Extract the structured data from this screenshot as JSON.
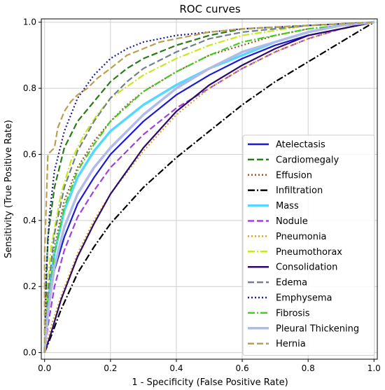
{
  "chart_data": {
    "type": "line",
    "title": "ROC curves",
    "xlabel": "1 - Specificity (False Positive Rate)",
    "ylabel": "Sensitivity (True Positive Rate)",
    "xlim": [
      -0.01,
      1.01
    ],
    "ylim": [
      -0.02,
      1.01
    ],
    "xticks": [
      "0.0",
      "0.2",
      "0.4",
      "0.6",
      "0.8",
      "1.0"
    ],
    "yticks": [
      "0.0",
      "0.2",
      "0.4",
      "0.6",
      "0.8",
      "1.0"
    ],
    "grid": true,
    "legend_position": "lower-right",
    "series": [
      {
        "name": "Atelectasis",
        "color": "#1a1ad6",
        "dash": "solid",
        "points": [
          [
            0,
            0
          ],
          [
            0.01,
            0.12
          ],
          [
            0.03,
            0.25
          ],
          [
            0.06,
            0.35
          ],
          [
            0.1,
            0.45
          ],
          [
            0.15,
            0.53
          ],
          [
            0.2,
            0.6
          ],
          [
            0.3,
            0.7
          ],
          [
            0.4,
            0.78
          ],
          [
            0.5,
            0.84
          ],
          [
            0.6,
            0.89
          ],
          [
            0.7,
            0.93
          ],
          [
            0.8,
            0.96
          ],
          [
            0.9,
            0.98
          ],
          [
            1,
            1
          ]
        ]
      },
      {
        "name": "Cardiomegaly",
        "color": "#2a7a1a",
        "dash": "dashed",
        "points": [
          [
            0,
            0
          ],
          [
            0.005,
            0.2
          ],
          [
            0.01,
            0.35
          ],
          [
            0.03,
            0.5
          ],
          [
            0.06,
            0.62
          ],
          [
            0.1,
            0.7
          ],
          [
            0.15,
            0.76
          ],
          [
            0.2,
            0.82
          ],
          [
            0.25,
            0.86
          ],
          [
            0.3,
            0.89
          ],
          [
            0.4,
            0.93
          ],
          [
            0.5,
            0.96
          ],
          [
            0.6,
            0.98
          ],
          [
            0.8,
            0.99
          ],
          [
            1,
            1
          ]
        ]
      },
      {
        "name": "Effusion",
        "color": "#a0522d",
        "dash": "dotted",
        "points": [
          [
            0,
            0
          ],
          [
            0.01,
            0.15
          ],
          [
            0.03,
            0.32
          ],
          [
            0.06,
            0.46
          ],
          [
            0.1,
            0.56
          ],
          [
            0.15,
            0.64
          ],
          [
            0.2,
            0.7
          ],
          [
            0.25,
            0.75
          ],
          [
            0.3,
            0.79
          ],
          [
            0.4,
            0.85
          ],
          [
            0.5,
            0.9
          ],
          [
            0.6,
            0.93
          ],
          [
            0.7,
            0.96
          ],
          [
            0.8,
            0.98
          ],
          [
            1,
            1
          ]
        ]
      },
      {
        "name": "Infiltration",
        "color": "#000000",
        "dash": "dashdot",
        "points": [
          [
            0,
            0
          ],
          [
            0.02,
            0.05
          ],
          [
            0.05,
            0.13
          ],
          [
            0.1,
            0.24
          ],
          [
            0.15,
            0.32
          ],
          [
            0.2,
            0.39
          ],
          [
            0.3,
            0.5
          ],
          [
            0.4,
            0.59
          ],
          [
            0.5,
            0.67
          ],
          [
            0.6,
            0.75
          ],
          [
            0.7,
            0.82
          ],
          [
            0.8,
            0.88
          ],
          [
            0.9,
            0.94
          ],
          [
            1,
            1
          ]
        ]
      },
      {
        "name": "Mass",
        "color": "#55d8ff",
        "dash": "solid-thick",
        "points": [
          [
            0,
            0
          ],
          [
            0.01,
            0.15
          ],
          [
            0.03,
            0.3
          ],
          [
            0.06,
            0.43
          ],
          [
            0.1,
            0.53
          ],
          [
            0.15,
            0.61
          ],
          [
            0.2,
            0.67
          ],
          [
            0.3,
            0.75
          ],
          [
            0.4,
            0.81
          ],
          [
            0.5,
            0.86
          ],
          [
            0.6,
            0.9
          ],
          [
            0.7,
            0.94
          ],
          [
            0.8,
            0.97
          ],
          [
            0.9,
            0.99
          ],
          [
            1,
            1
          ]
        ]
      },
      {
        "name": "Nodule",
        "color": "#a040e0",
        "dash": "dashed",
        "points": [
          [
            0,
            0
          ],
          [
            0.01,
            0.08
          ],
          [
            0.03,
            0.2
          ],
          [
            0.06,
            0.31
          ],
          [
            0.1,
            0.41
          ],
          [
            0.15,
            0.49
          ],
          [
            0.2,
            0.56
          ],
          [
            0.3,
            0.66
          ],
          [
            0.4,
            0.74
          ],
          [
            0.5,
            0.8
          ],
          [
            0.6,
            0.86
          ],
          [
            0.7,
            0.91
          ],
          [
            0.8,
            0.95
          ],
          [
            0.9,
            0.98
          ],
          [
            1,
            1
          ]
        ]
      },
      {
        "name": "Pneumonia",
        "color": "#e0a020",
        "dash": "dotted",
        "points": [
          [
            0,
            0
          ],
          [
            0.02,
            0.08
          ],
          [
            0.05,
            0.17
          ],
          [
            0.1,
            0.3
          ],
          [
            0.15,
            0.4
          ],
          [
            0.2,
            0.48
          ],
          [
            0.3,
            0.61
          ],
          [
            0.4,
            0.72
          ],
          [
            0.5,
            0.8
          ],
          [
            0.6,
            0.86
          ],
          [
            0.7,
            0.91
          ],
          [
            0.8,
            0.95
          ],
          [
            0.9,
            0.98
          ],
          [
            1,
            1
          ]
        ]
      },
      {
        "name": "Pneumothorax",
        "color": "#c8e81a",
        "dash": "dashdot",
        "points": [
          [
            0,
            0
          ],
          [
            0.005,
            0.15
          ],
          [
            0.02,
            0.32
          ],
          [
            0.05,
            0.48
          ],
          [
            0.08,
            0.58
          ],
          [
            0.12,
            0.66
          ],
          [
            0.16,
            0.72
          ],
          [
            0.2,
            0.77
          ],
          [
            0.3,
            0.84
          ],
          [
            0.4,
            0.89
          ],
          [
            0.5,
            0.93
          ],
          [
            0.6,
            0.96
          ],
          [
            0.8,
            0.99
          ],
          [
            1,
            1
          ]
        ]
      },
      {
        "name": "Consolidation",
        "color": "#2a0a6a",
        "dash": "solid",
        "points": [
          [
            0,
            0
          ],
          [
            0.02,
            0.06
          ],
          [
            0.05,
            0.16
          ],
          [
            0.1,
            0.29
          ],
          [
            0.15,
            0.39
          ],
          [
            0.2,
            0.48
          ],
          [
            0.3,
            0.62
          ],
          [
            0.4,
            0.73
          ],
          [
            0.5,
            0.81
          ],
          [
            0.6,
            0.87
          ],
          [
            0.7,
            0.92
          ],
          [
            0.8,
            0.96
          ],
          [
            0.9,
            0.98
          ],
          [
            1,
            1
          ]
        ]
      },
      {
        "name": "Edema",
        "color": "#708090",
        "dash": "dashed",
        "points": [
          [
            0,
            0
          ],
          [
            0.01,
            0.18
          ],
          [
            0.03,
            0.36
          ],
          [
            0.06,
            0.5
          ],
          [
            0.1,
            0.61
          ],
          [
            0.15,
            0.7
          ],
          [
            0.2,
            0.77
          ],
          [
            0.25,
            0.82
          ],
          [
            0.3,
            0.86
          ],
          [
            0.4,
            0.91
          ],
          [
            0.5,
            0.95
          ],
          [
            0.6,
            0.97
          ],
          [
            0.8,
            0.99
          ],
          [
            1,
            1
          ]
        ]
      },
      {
        "name": "Emphysema",
        "color": "#1a1a9a",
        "dash": "dotted",
        "points": [
          [
            0,
            0
          ],
          [
            0.005,
            0.25
          ],
          [
            0.015,
            0.42
          ],
          [
            0.03,
            0.55
          ],
          [
            0.06,
            0.67
          ],
          [
            0.1,
            0.77
          ],
          [
            0.15,
            0.84
          ],
          [
            0.2,
            0.89
          ],
          [
            0.25,
            0.92
          ],
          [
            0.3,
            0.94
          ],
          [
            0.4,
            0.96
          ],
          [
            0.5,
            0.97
          ],
          [
            0.6,
            0.98
          ],
          [
            0.8,
            0.99
          ],
          [
            1,
            1
          ]
        ]
      },
      {
        "name": "Fibrosis",
        "color": "#44cc22",
        "dash": "dashdot",
        "points": [
          [
            0,
            0
          ],
          [
            0.01,
            0.14
          ],
          [
            0.03,
            0.3
          ],
          [
            0.06,
            0.44
          ],
          [
            0.1,
            0.55
          ],
          [
            0.15,
            0.63
          ],
          [
            0.2,
            0.7
          ],
          [
            0.3,
            0.79
          ],
          [
            0.4,
            0.85
          ],
          [
            0.5,
            0.9
          ],
          [
            0.6,
            0.94
          ],
          [
            0.7,
            0.96
          ],
          [
            0.8,
            0.98
          ],
          [
            1,
            1
          ]
        ]
      },
      {
        "name": "Pleural Thickening",
        "color": "#b0bce8",
        "dash": "solid-thick",
        "points": [
          [
            0,
            0
          ],
          [
            0.01,
            0.12
          ],
          [
            0.03,
            0.26
          ],
          [
            0.06,
            0.38
          ],
          [
            0.1,
            0.48
          ],
          [
            0.15,
            0.56
          ],
          [
            0.2,
            0.62
          ],
          [
            0.3,
            0.72
          ],
          [
            0.4,
            0.8
          ],
          [
            0.5,
            0.86
          ],
          [
            0.6,
            0.91
          ],
          [
            0.7,
            0.94
          ],
          [
            0.8,
            0.97
          ],
          [
            0.9,
            0.99
          ],
          [
            1,
            1
          ]
        ]
      },
      {
        "name": "Hernia",
        "color": "#b8a050",
        "dash": "dashed",
        "points": [
          [
            0,
            0
          ],
          [
            0,
            0.3
          ],
          [
            0.005,
            0.45
          ],
          [
            0.01,
            0.6
          ],
          [
            0.03,
            0.62
          ],
          [
            0.04,
            0.68
          ],
          [
            0.06,
            0.73
          ],
          [
            0.08,
            0.76
          ],
          [
            0.1,
            0.78
          ],
          [
            0.13,
            0.8
          ],
          [
            0.16,
            0.83
          ],
          [
            0.2,
            0.86
          ],
          [
            0.25,
            0.9
          ],
          [
            0.3,
            0.92
          ],
          [
            0.35,
            0.94
          ],
          [
            0.4,
            0.95
          ],
          [
            0.5,
            0.97
          ],
          [
            0.6,
            0.98
          ],
          [
            0.8,
            0.99
          ],
          [
            1,
            1
          ]
        ]
      }
    ]
  }
}
